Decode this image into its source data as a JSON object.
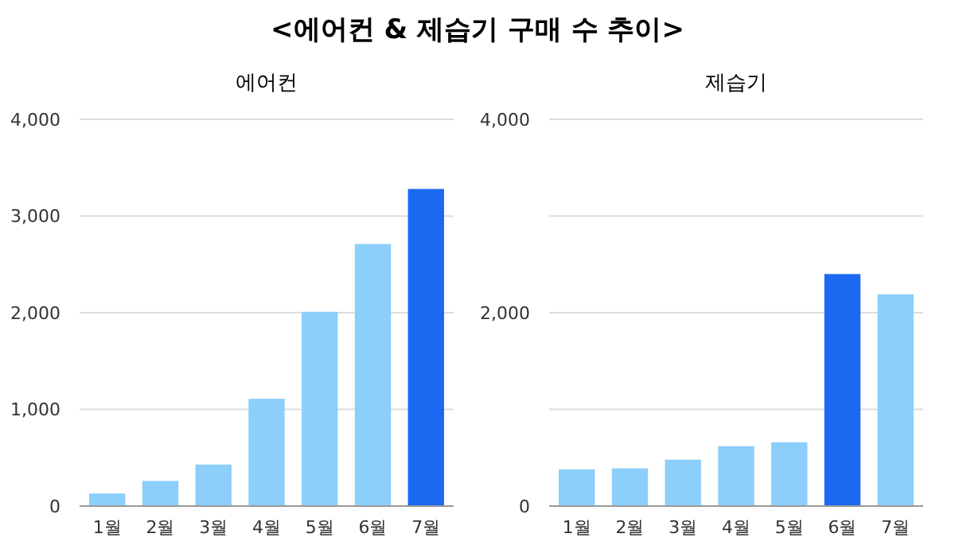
{
  "chart_data": [
    {
      "type": "bar",
      "title": "<에어컨 & 제습기 구매 수 추이>",
      "subtitle": "에어컨",
      "categories": [
        "1월",
        "2월",
        "3월",
        "4월",
        "5월",
        "6월",
        "7월"
      ],
      "values": [
        130,
        260,
        430,
        1110,
        2010,
        2710,
        3280
      ],
      "colors": [
        "#8ccffa",
        "#8ccffa",
        "#8ccffa",
        "#8ccffa",
        "#8ccffa",
        "#8ccffa",
        "#1c69f2"
      ],
      "ylim": [
        0,
        4000
      ],
      "yticks": [
        {
          "value": 0,
          "label": "0"
        },
        {
          "value": 1000,
          "label": "1,000"
        },
        {
          "value": 2000,
          "label": "2,000"
        },
        {
          "value": 3000,
          "label": "3,000"
        },
        {
          "value": 4000,
          "label": "4,000"
        }
      ],
      "grid": "y"
    },
    {
      "type": "bar",
      "subtitle": "제습기",
      "categories": [
        "1월",
        "2월",
        "3월",
        "4월",
        "5월",
        "6월",
        "7월"
      ],
      "values": [
        380,
        390,
        480,
        620,
        660,
        2400,
        2190
      ],
      "colors": [
        "#8ccffa",
        "#8ccffa",
        "#8ccffa",
        "#8ccffa",
        "#8ccffa",
        "#1c69f2",
        "#8ccffa"
      ],
      "ylim": [
        0,
        4000
      ],
      "yticks": [
        {
          "value": 0,
          "label": "0"
        },
        {
          "value": 1000,
          "label": null
        },
        {
          "value": 2000,
          "label": "2,000"
        },
        {
          "value": 3000,
          "label": null
        },
        {
          "value": 4000,
          "label": "4,000"
        }
      ],
      "grid": "y"
    }
  ]
}
